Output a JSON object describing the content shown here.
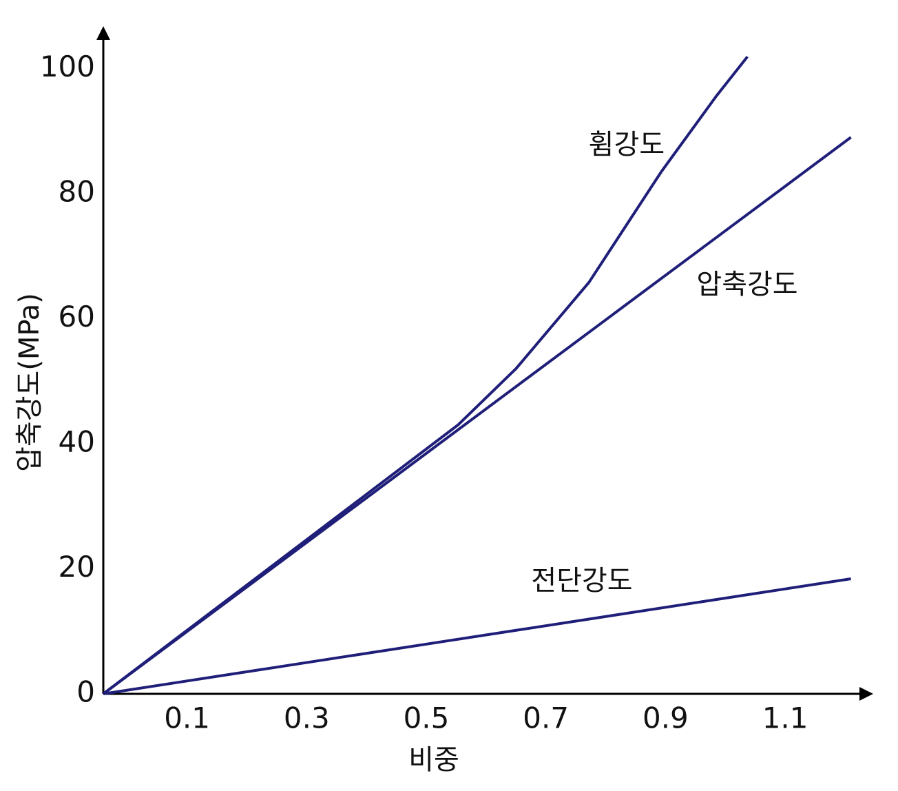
{
  "chart_data": {
    "type": "line",
    "x_label": "비중",
    "y_label": "압축강도(MPa)",
    "xlim": [
      -0.04,
      1.23
    ],
    "ylim": [
      0,
      106
    ],
    "xticks": [
      0.1,
      0.3,
      0.5,
      0.7,
      0.9,
      1.1
    ],
    "yticks": [
      0,
      20,
      40,
      60,
      80,
      100
    ],
    "grid": false,
    "series": [
      {
        "name": "휨강도",
        "color": "#1f1f7a",
        "x": [
          -0.04,
          0.553,
          0.65,
          0.772,
          0.893,
          0.985,
          1.037
        ],
        "values": [
          0,
          43,
          52,
          65.8,
          83.5,
          95.6,
          101.9
        ]
      },
      {
        "name": "압축강도",
        "color": "#1f1f7a",
        "x": [
          -0.04,
          1.21
        ],
        "values": [
          0,
          89
        ]
      },
      {
        "name": "전단강도",
        "color": "#1f1f7a",
        "x": [
          -0.04,
          1.21
        ],
        "values": [
          0,
          18.4
        ]
      }
    ]
  }
}
